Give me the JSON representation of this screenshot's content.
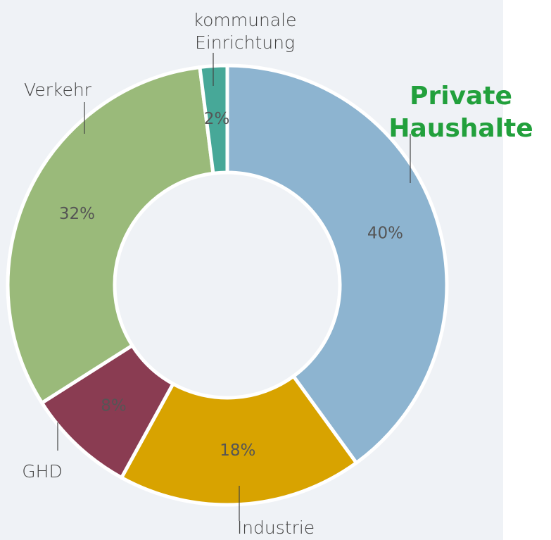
{
  "chart_data": {
    "type": "pie",
    "donut": true,
    "categories": [
      "Private Haushalte",
      "Industrie",
      "GHD",
      "Verkehr",
      "kommunale Einrichtung"
    ],
    "values": [
      40,
      18,
      8,
      32,
      2
    ],
    "value_labels": [
      "40%",
      "18%",
      "8%",
      "32%",
      "2%"
    ],
    "colors": [
      "#8db4d0",
      "#d8a300",
      "#8a3c52",
      "#9aba7a",
      "#47a898"
    ]
  }
}
